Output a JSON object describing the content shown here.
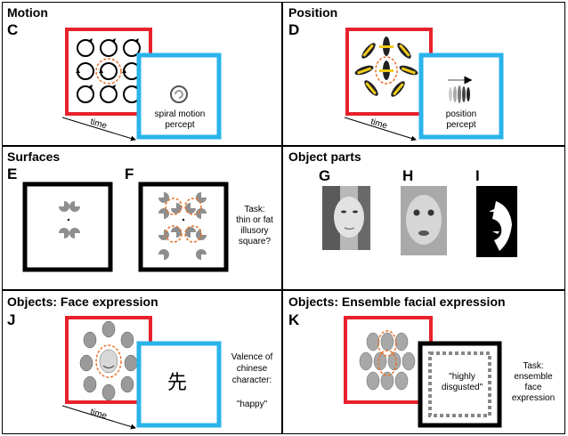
{
  "panels": [
    {
      "title": "Motion",
      "letter": "C"
    },
    {
      "title": "Position",
      "letter": "D"
    },
    {
      "title": "Surfaces",
      "letters": [
        "E",
        "F"
      ]
    },
    {
      "title": "Object parts",
      "letters": [
        "G",
        "H",
        "I"
      ]
    },
    {
      "title": "Objects: Face expression",
      "letter": "J"
    },
    {
      "title": "Objects: Ensemble facial expression",
      "letter": "K"
    }
  ],
  "labels": {
    "time": "time",
    "spiral_line1": "spiral motion",
    "spiral_line2": "percept",
    "position_line1": "position",
    "position_line2": "percept",
    "task_surfaces": [
      "Task:",
      "thin or fat",
      "illusory",
      "square?"
    ],
    "chinese_char": "先",
    "valence": [
      "Valence of",
      "chinese",
      "character:"
    ],
    "happy": "\"happy\"",
    "highly": "\"highly",
    "disgusted": "disgusted\"",
    "task_ensemble": [
      "Task:",
      "ensemble",
      "face",
      "expression"
    ]
  },
  "colors": {
    "red": "#e8212b",
    "blue": "#2ab3ea",
    "orange": "#e8732c",
    "yellow": "#f2cc1a"
  }
}
